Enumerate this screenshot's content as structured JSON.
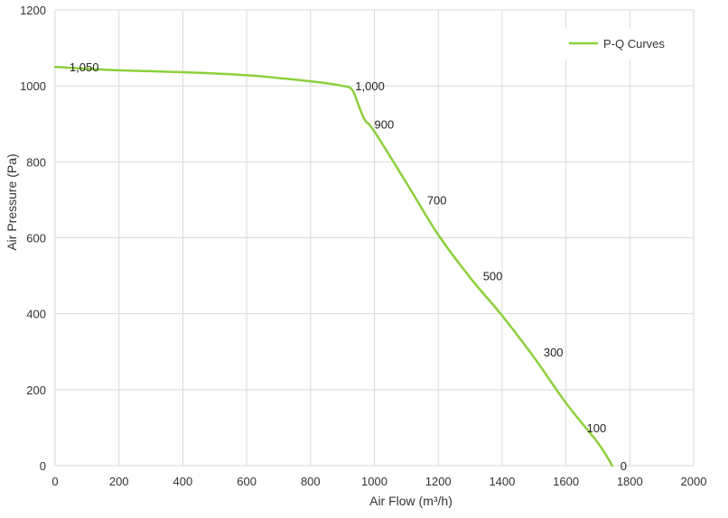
{
  "chart_data": {
    "type": "line",
    "title": "",
    "xlabel": "Air Flow  (m³/h)",
    "ylabel": "Air Pressure  (Pa)",
    "xlim": [
      0,
      2000
    ],
    "ylim": [
      0,
      1200
    ],
    "xticks": [
      0,
      200,
      400,
      600,
      800,
      1000,
      1200,
      1400,
      1600,
      1800,
      2000
    ],
    "yticks": [
      0,
      200,
      400,
      600,
      800,
      1000,
      1200
    ],
    "grid": true,
    "legend_position": "top-right",
    "series": [
      {
        "name": "P-Q Curves",
        "color": "#8cd03c",
        "x": [
          0,
          100,
          200,
          400,
          600,
          800,
          900,
          930,
          950,
          970,
          1000,
          1100,
          1200,
          1300,
          1400,
          1500,
          1600,
          1700,
          1745
        ],
        "y": [
          1050,
          1045,
          1041,
          1036,
          1028,
          1012,
          1000,
          990,
          950,
          910,
          880,
          745,
          608,
          495,
          395,
          285,
          165,
          60,
          0
        ]
      }
    ],
    "annotations": [
      {
        "text": "1,050",
        "x": 45,
        "y": 1050
      },
      {
        "text": "1,000",
        "x": 940,
        "y": 1000
      },
      {
        "text": "900",
        "x": 1000,
        "y": 900
      },
      {
        "text": "700",
        "x": 1165,
        "y": 700
      },
      {
        "text": "500",
        "x": 1340,
        "y": 500
      },
      {
        "text": "300",
        "x": 1530,
        "y": 300
      },
      {
        "text": "100",
        "x": 1665,
        "y": 100
      },
      {
        "text": "0",
        "x": 1770,
        "y": 0
      }
    ]
  }
}
